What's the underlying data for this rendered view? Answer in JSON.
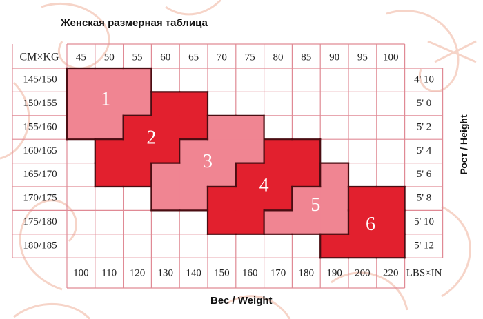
{
  "chart_data": {
    "type": "table",
    "title": "Женская размерная таблица",
    "xlabel": "Вес / Weight",
    "ylabel": "Рост / Height",
    "top_corner_label": "CM×KG",
    "bottom_corner_label": "LBS×IN",
    "kg_columns": [
      "45",
      "50",
      "55",
      "60",
      "65",
      "70",
      "75",
      "80",
      "85",
      "90",
      "95",
      "100"
    ],
    "lbs_columns": [
      "100",
      "110",
      "120",
      "130",
      "140",
      "150",
      "160",
      "170",
      "180",
      "190",
      "200",
      "220"
    ],
    "cm_rows": [
      "145/150",
      "150/155",
      "155/160",
      "160/165",
      "165/170",
      "170/175",
      "175/180",
      "180/185"
    ],
    "in_rows": [
      "4' 10",
      "5' 0",
      "5' 2",
      "5' 4",
      "5' 6",
      "5' 8",
      "5' 10",
      "5' 12"
    ],
    "sizes": [
      {
        "label": "1",
        "color": "#f08592",
        "cells": [
          [
            0,
            0
          ],
          [
            0,
            1
          ],
          [
            0,
            2
          ],
          [
            1,
            0
          ],
          [
            1,
            1
          ],
          [
            1,
            2
          ],
          [
            2,
            0
          ],
          [
            2,
            1
          ]
        ]
      },
      {
        "label": "2",
        "color": "#e2202e",
        "cells": [
          [
            1,
            3
          ],
          [
            1,
            4
          ],
          [
            2,
            2
          ],
          [
            2,
            3
          ],
          [
            2,
            4
          ],
          [
            3,
            1
          ],
          [
            3,
            2
          ],
          [
            3,
            3
          ],
          [
            4,
            1
          ],
          [
            4,
            2
          ]
        ]
      },
      {
        "label": "3",
        "color": "#f08592",
        "cells": [
          [
            2,
            5
          ],
          [
            2,
            6
          ],
          [
            3,
            4
          ],
          [
            3,
            5
          ],
          [
            3,
            6
          ],
          [
            4,
            3
          ],
          [
            4,
            4
          ],
          [
            4,
            5
          ],
          [
            5,
            3
          ],
          [
            5,
            4
          ]
        ]
      },
      {
        "label": "4",
        "color": "#e2202e",
        "cells": [
          [
            3,
            7
          ],
          [
            3,
            8
          ],
          [
            4,
            6
          ],
          [
            4,
            7
          ],
          [
            4,
            8
          ],
          [
            5,
            5
          ],
          [
            5,
            6
          ],
          [
            5,
            7
          ],
          [
            6,
            5
          ],
          [
            6,
            6
          ]
        ]
      },
      {
        "label": "5",
        "color": "#f08592",
        "cells": [
          [
            4,
            9
          ],
          [
            5,
            8
          ],
          [
            5,
            9
          ],
          [
            6,
            7
          ],
          [
            6,
            8
          ],
          [
            6,
            9
          ]
        ]
      },
      {
        "label": "6",
        "color": "#e2202e",
        "cells": [
          [
            5,
            10
          ],
          [
            5,
            11
          ],
          [
            6,
            10
          ],
          [
            6,
            11
          ],
          [
            7,
            9
          ],
          [
            7,
            10
          ],
          [
            7,
            11
          ]
        ]
      }
    ],
    "grid_color": "#e08a95",
    "border_color": "#4a0d12"
  }
}
